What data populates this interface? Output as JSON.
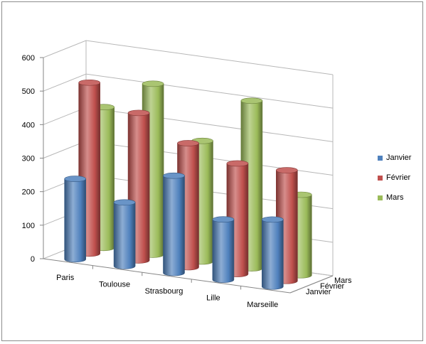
{
  "chart_data": {
    "type": "bar",
    "style": "3d-cylinder",
    "categories": [
      "Paris",
      "Toulouse",
      "Strasbourg",
      "Lille",
      "Marseille"
    ],
    "series": [
      {
        "name": "Janvier",
        "color": "#4f81bd",
        "values": [
          240,
          190,
          290,
          180,
          200
        ]
      },
      {
        "name": "Février",
        "color": "#c0504d",
        "values": [
          510,
          440,
          370,
          330,
          330
        ]
      },
      {
        "name": "Mars",
        "color": "#9bbb59",
        "values": [
          420,
          510,
          360,
          500,
          240
        ]
      }
    ],
    "yticks": [
      0,
      100,
      200,
      300,
      400,
      500,
      600
    ],
    "ylim": [
      0,
      600
    ],
    "depth_labels": [
      "Janvier",
      "Février",
      "Mars"
    ],
    "legend_position": "right",
    "grid": true
  }
}
